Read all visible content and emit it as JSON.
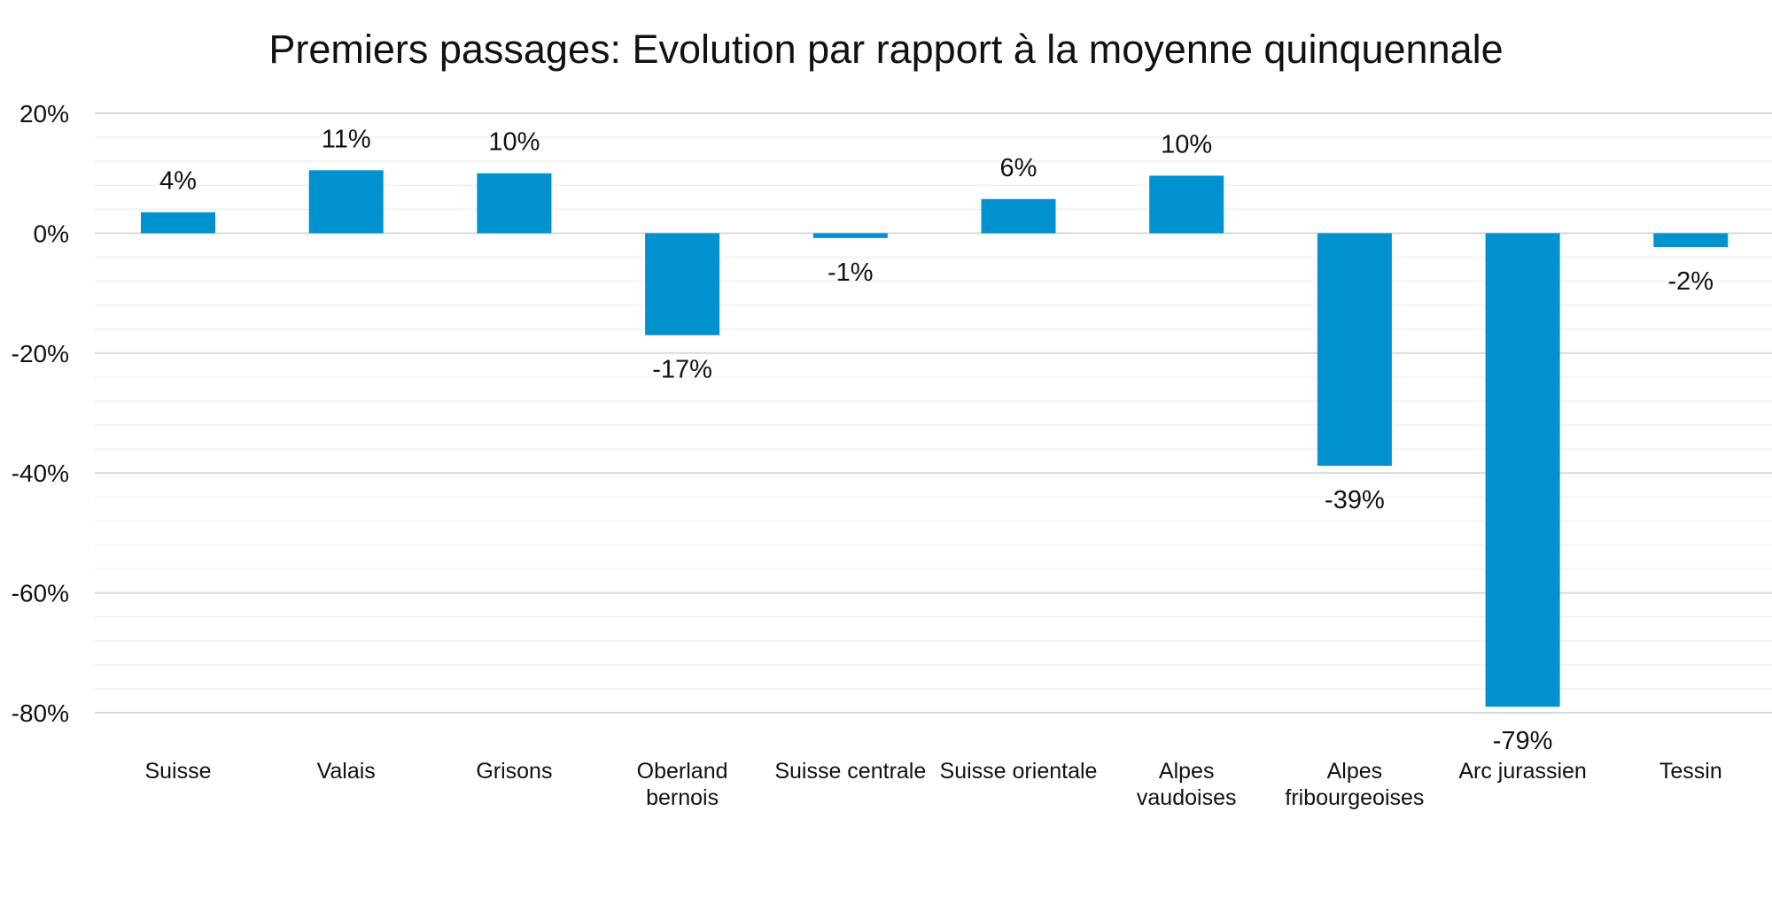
{
  "chart_data": {
    "type": "bar",
    "title": "Premiers passages: Evolution par rapport à la moyenne quinquennale",
    "xlabel": "",
    "ylabel": "",
    "categories": [
      [
        "Suisse"
      ],
      [
        "Valais"
      ],
      [
        "Grisons"
      ],
      [
        "Oberland",
        "bernois"
      ],
      [
        "Suisse centrale"
      ],
      [
        "Suisse orientale"
      ],
      [
        "Alpes",
        "vaudoises"
      ],
      [
        "Alpes",
        "fribourgeoises"
      ],
      [
        "Arc jurassien"
      ],
      [
        "Tessin"
      ]
    ],
    "values": [
      3.5,
      10.5,
      10,
      -17,
      -0.8,
      5.7,
      9.6,
      -38.8,
      -79,
      -2.3
    ],
    "data_labels": [
      "4%",
      "11%",
      "10%",
      "-17%",
      "-1%",
      "6%",
      "10%",
      "-39%",
      "-79%",
      "-2%"
    ],
    "ylim": [
      -80,
      20
    ],
    "yticks": [
      20,
      0,
      -20,
      -40,
      -60,
      -80
    ],
    "ytick_labels": [
      "20%",
      "0%",
      "-20%",
      "-40%",
      "-60%",
      "-80%"
    ],
    "minor_grid_step": 4,
    "grid": true,
    "legend": "none",
    "bar_color": "#0091CF",
    "major_grid_color": "#D9D9D9",
    "minor_grid_color": "#F0F0F0"
  }
}
